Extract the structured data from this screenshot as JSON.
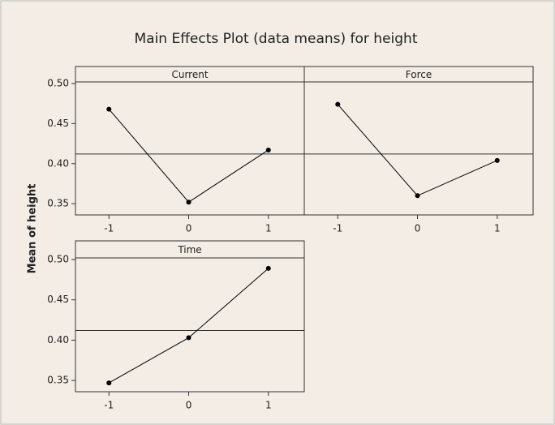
{
  "title": "Main Effects Plot (data means) for height",
  "ylabel": "Mean of height",
  "chart_data": [
    {
      "type": "line",
      "title": "Current",
      "x": [
        -1,
        0,
        1
      ],
      "values": [
        0.468,
        0.352,
        0.417
      ],
      "mean_line": 0.412,
      "xlim": [
        -1.42,
        1.45
      ],
      "xticks": [
        -1,
        0,
        1
      ],
      "ylim": [
        0.336,
        0.502
      ],
      "yticks": [
        {
          "value": 0.5,
          "label": "0.50"
        },
        0.45,
        {
          "value": 0.4,
          "label": "0.40"
        },
        0.35
      ],
      "color": "#000000"
    },
    {
      "type": "line",
      "title": "Force",
      "x": [
        -1,
        0,
        1
      ],
      "values": [
        0.474,
        0.36,
        0.404
      ],
      "mean_line": 0.412,
      "xlim": [
        -1.42,
        1.45
      ],
      "xticks": [
        -1,
        0,
        1
      ],
      "ylim": [
        0.336,
        0.502
      ],
      "color": "#000000"
    },
    {
      "type": "line",
      "title": "Time",
      "x": [
        -1,
        0,
        1
      ],
      "values": [
        0.347,
        0.403,
        0.489
      ],
      "mean_line": 0.412,
      "xlim": [
        -1.42,
        1.45
      ],
      "xticks": [
        -1,
        0,
        1
      ],
      "ylim": [
        0.336,
        0.502
      ],
      "yticks": [
        {
          "value": 0.5,
          "label": "0.50"
        },
        0.45,
        {
          "value": 0.4,
          "label": "0.40"
        },
        0.35
      ],
      "color": "#000000"
    }
  ]
}
